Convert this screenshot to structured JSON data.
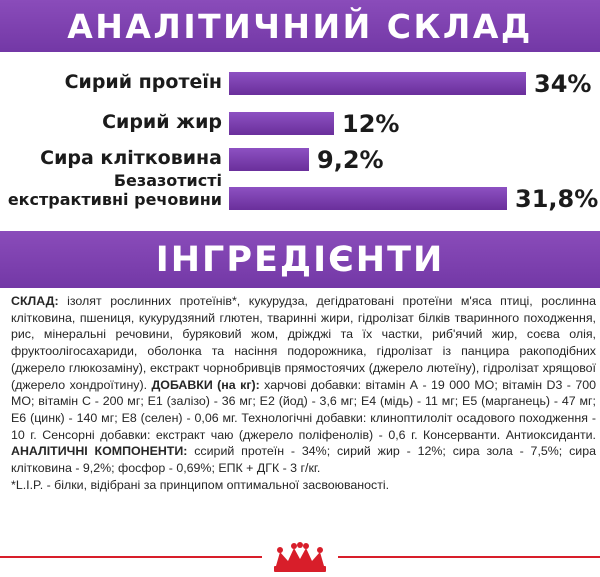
{
  "analytic_title": "АНАЛІТИЧНИЙ СКЛАД",
  "ingredients_title": "ІНГРЕДІЄНТИ",
  "chart_data": {
    "type": "bar",
    "categories": [
      "Сирий протеїн",
      "Сирий жир",
      "Сира клітковина",
      "Безазотисті екстрактивні речовини"
    ],
    "values": [
      34,
      12,
      9.2,
      31.8
    ],
    "value_labels": [
      "34%",
      "12%",
      "9,2%",
      "31,8%"
    ],
    "label_lines": [
      [
        "Сирий протеїн"
      ],
      [
        "Сирий жир"
      ],
      [
        "Сира клітковина"
      ],
      [
        "Безазотисті",
        "екстрактивні речовини"
      ]
    ],
    "xlim": [
      0,
      34
    ]
  },
  "composition": {
    "sklad_label": "СКЛАД:",
    "sklad_text": " ізолят рослинних протеїнів*, кукурудза, дегідратовані протеїни м'яса птиці, рослинна клітковина, пшениця, кукурудзяний глютен, тваринні жири, гідролізат білків тваринного походження, рис, мінеральні речовини, буряковий жом, дріжджі та їх частки, риб'ячий жир, соєва олія, фруктоолігосахариди, оболонка та насіння подорожника, гідролізат із панцира ракоподібних (джерело глюкозаміну), екстракт чорнобривців прямостоячих (джерело лютеїну), гідролізат хрящової (джерело хондроїтину). ",
    "additives_label": "ДОБАВКИ (на кг):",
    "additives_text": " харчові добавки: вітамін А - 19 000 МО; вітамін D3 - 700 МО; вітамін С - 200 мг; Е1 (залізо) - 36 мг; Е2 (йод) - 3,6 мг; Е4 (мідь) - 11 мг; Е5 (марганець) - 47 мг; Е6 (цинк) - 140 мг; Е8 (селен) - 0,06 мг. Технологічні добавки: клиноптилоліт осадового походження - 10 г. Сенсорні добавки: екстракт чаю (джерело поліфенолів) - 0,6 г. Консерванти. Антиоксиданти. ",
    "analytic_label": "АНАЛІТИЧНІ КОМПОНЕНТИ:",
    "analytic_text": " ссирий протеїн - 34%; сирий жир - 12%; сира зола - 7,5%; сира клітковина - 9,2%; фосфор - 0,69%; ЕПК + ДГК - 3 г/кг.",
    "footnote": "*L.I.P. - білки, відібрані за принципом оптимальної засвоюваності."
  },
  "colors": {
    "banner": "#7b3fb0",
    "bar": "#7b3fb0",
    "footer_accent": "#d81e2a"
  },
  "logo": "royal-canin-crown"
}
